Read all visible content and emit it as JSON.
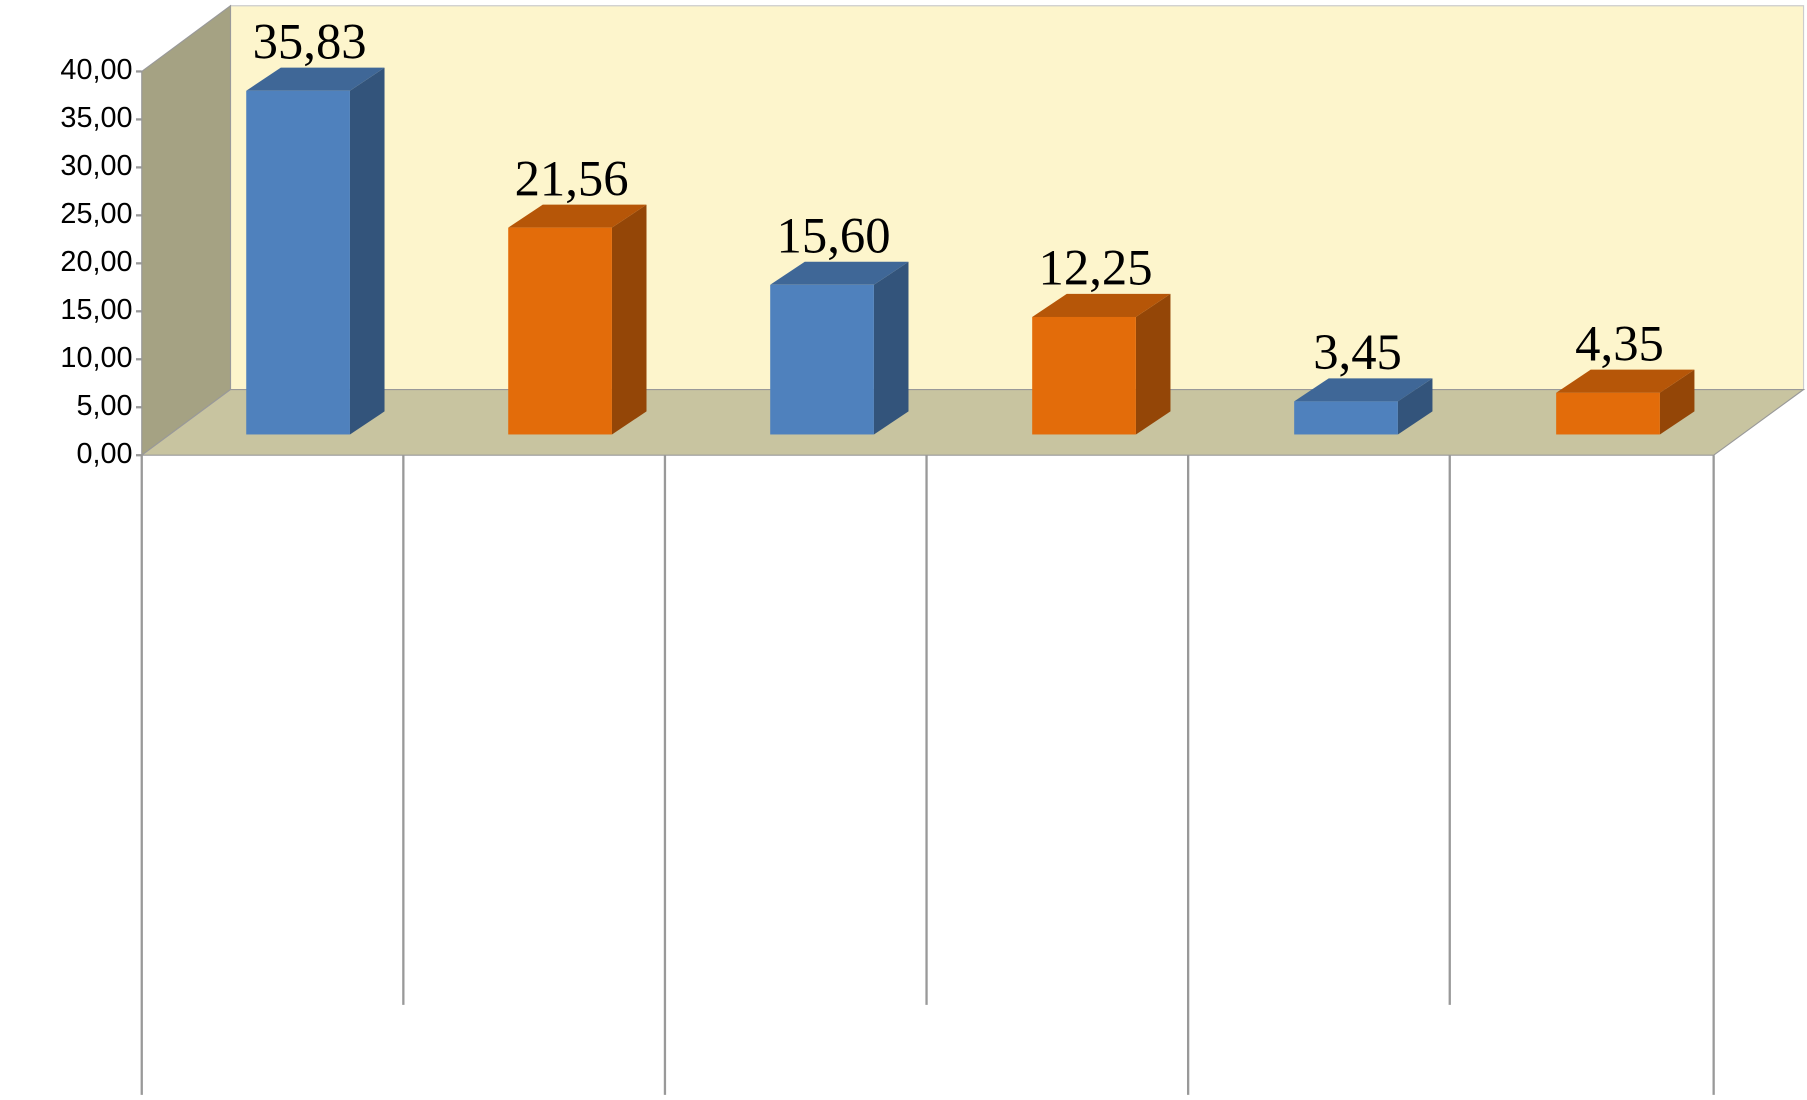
{
  "chart_data": {
    "type": "bar",
    "categories": [
      null,
      null,
      null,
      null,
      null,
      null
    ],
    "values": [
      35.83,
      21.56,
      15.6,
      12.25,
      3.45,
      4.35
    ],
    "value_labels": [
      "35,83",
      "21,56",
      "15,60",
      "12,25",
      "3,45",
      "4,35"
    ],
    "colors": [
      "#4f81bd",
      "#e36c0a",
      "#4f81bd",
      "#e36c0a",
      "#4f81bd",
      "#e36c0a"
    ],
    "ylim": [
      0,
      40
    ],
    "yticks": [
      {
        "value": 0,
        "label": "0,00"
      },
      {
        "value": 5,
        "label": "5,00"
      },
      {
        "value": 10,
        "label": "10,00"
      },
      {
        "value": 15,
        "label": "15,00"
      },
      {
        "value": 20,
        "label": "20,00"
      },
      {
        "value": 25,
        "label": "25,00"
      },
      {
        "value": 30,
        "label": "30,00"
      },
      {
        "value": 35,
        "label": "35,00"
      },
      {
        "value": 40,
        "label": "40,00"
      }
    ]
  }
}
